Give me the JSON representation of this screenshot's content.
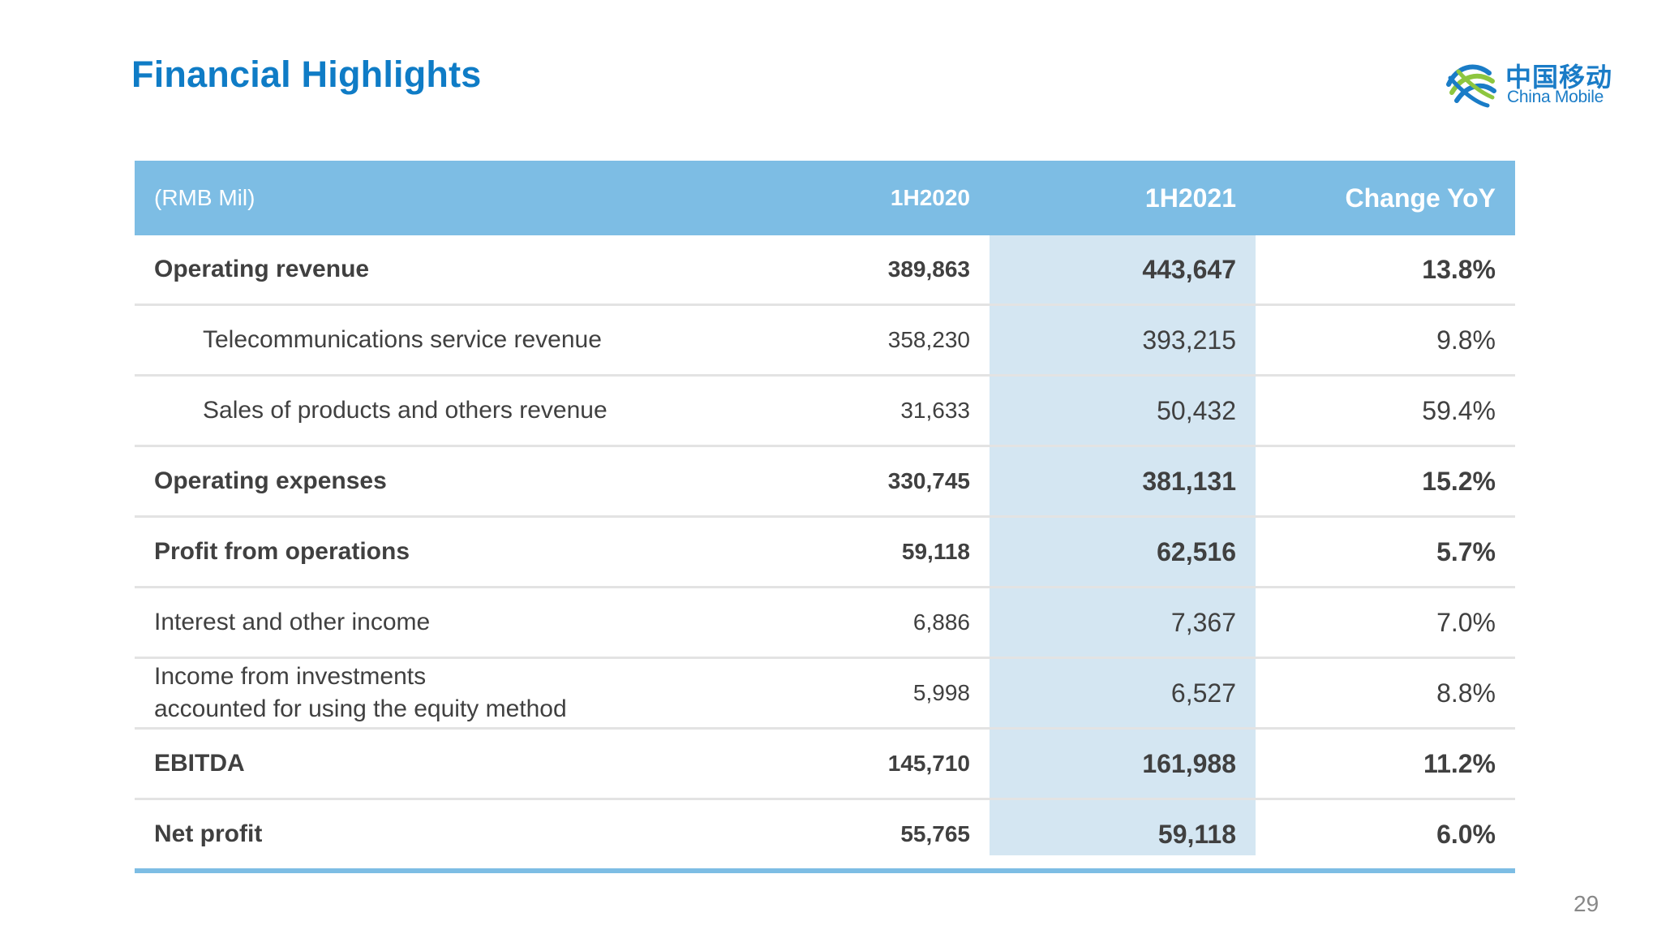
{
  "title": "Financial Highlights",
  "logo": {
    "chinese": "中国移动",
    "english": "China Mobile",
    "icon": "china-mobile-logo-icon",
    "colors": {
      "blue": "#1a7cc7",
      "green": "#8dc63f"
    }
  },
  "colors": {
    "title": "#0f7cc6",
    "header_bg": "#7dbde4",
    "highlight_column": "#d4e6f2",
    "row_divider": "#e3e3e3"
  },
  "table": {
    "headers": [
      "(RMB Mil)",
      "1H2020",
      "1H2021",
      "Change YoY"
    ],
    "rows": [
      {
        "label": "Operating revenue",
        "v2020": "389,863",
        "v2021": "443,647",
        "change": "13.8%"
      },
      {
        "label": "Telecommunications service revenue",
        "v2020": "358,230",
        "v2021": "393,215",
        "change": "9.8%"
      },
      {
        "label": "Sales of products and others revenue",
        "v2020": "31,633",
        "v2021": "50,432",
        "change": "59.4%"
      },
      {
        "label": "Operating expenses",
        "v2020": "330,745",
        "v2021": "381,131",
        "change": "15.2%"
      },
      {
        "label": "Profit from operations",
        "v2020": "59,118",
        "v2021": "62,516",
        "change": "5.7%"
      },
      {
        "label": "Interest and other income",
        "v2020": "6,886",
        "v2021": "7,367",
        "change": "7.0%"
      },
      {
        "label_line1": "Income from investments",
        "label_line2": "accounted for using the equity method",
        "v2020": "5,998",
        "v2021": "6,527",
        "change": "8.8%"
      },
      {
        "label": "EBITDA",
        "v2020": "145,710",
        "v2021": "161,988",
        "change": "11.2%"
      },
      {
        "label": "Net profit",
        "v2020": "55,765",
        "v2021": "59,118",
        "change": "6.0%"
      }
    ]
  },
  "page_number": "29"
}
